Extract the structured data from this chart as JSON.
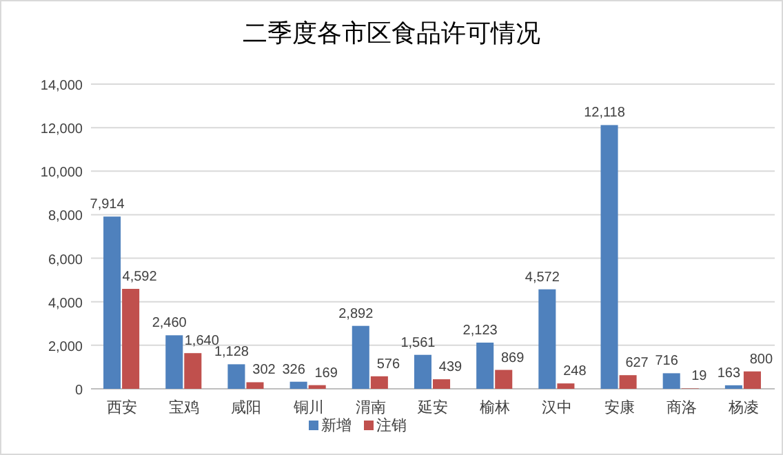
{
  "chart_data": {
    "type": "bar",
    "title": "二季度各市区食品许可情况",
    "categories": [
      "西安",
      "宝鸡",
      "咸阳",
      "铜川",
      "渭南",
      "延安",
      "榆林",
      "汉中",
      "安康",
      "商洛",
      "杨凌"
    ],
    "series": [
      {
        "name": "新增",
        "color": "#4f81bd",
        "values": [
          7914,
          2460,
          1128,
          326,
          2892,
          1561,
          2123,
          4572,
          12118,
          716,
          163
        ],
        "value_labels": [
          "7,914",
          "2,460",
          "1,128",
          "326",
          "2,892",
          "1,561",
          "2,123",
          "4,572",
          "12,118",
          "716",
          "163"
        ]
      },
      {
        "name": "注销",
        "color": "#c0504d",
        "values": [
          4592,
          1640,
          302,
          169,
          576,
          439,
          869,
          248,
          627,
          19,
          800
        ],
        "value_labels": [
          "4,592",
          "1,640",
          "302",
          "169",
          "576",
          "439",
          "869",
          "248",
          "627",
          "19",
          "800"
        ]
      }
    ],
    "ylim": [
      0,
      14000
    ],
    "yticks": [
      0,
      {
        "value": 2000,
        "label": "2,000"
      },
      {
        "value": 4000,
        "label": "4,000"
      },
      {
        "value": 6000,
        "label": "6,000"
      },
      {
        "value": 8000,
        "label": "8,000"
      },
      {
        "value": 10000,
        "label": "10,000"
      },
      {
        "value": 12000,
        "label": "12,000"
      },
      {
        "value": 14000,
        "label": "14,000"
      }
    ],
    "grid": "y",
    "legend": "bottom"
  }
}
